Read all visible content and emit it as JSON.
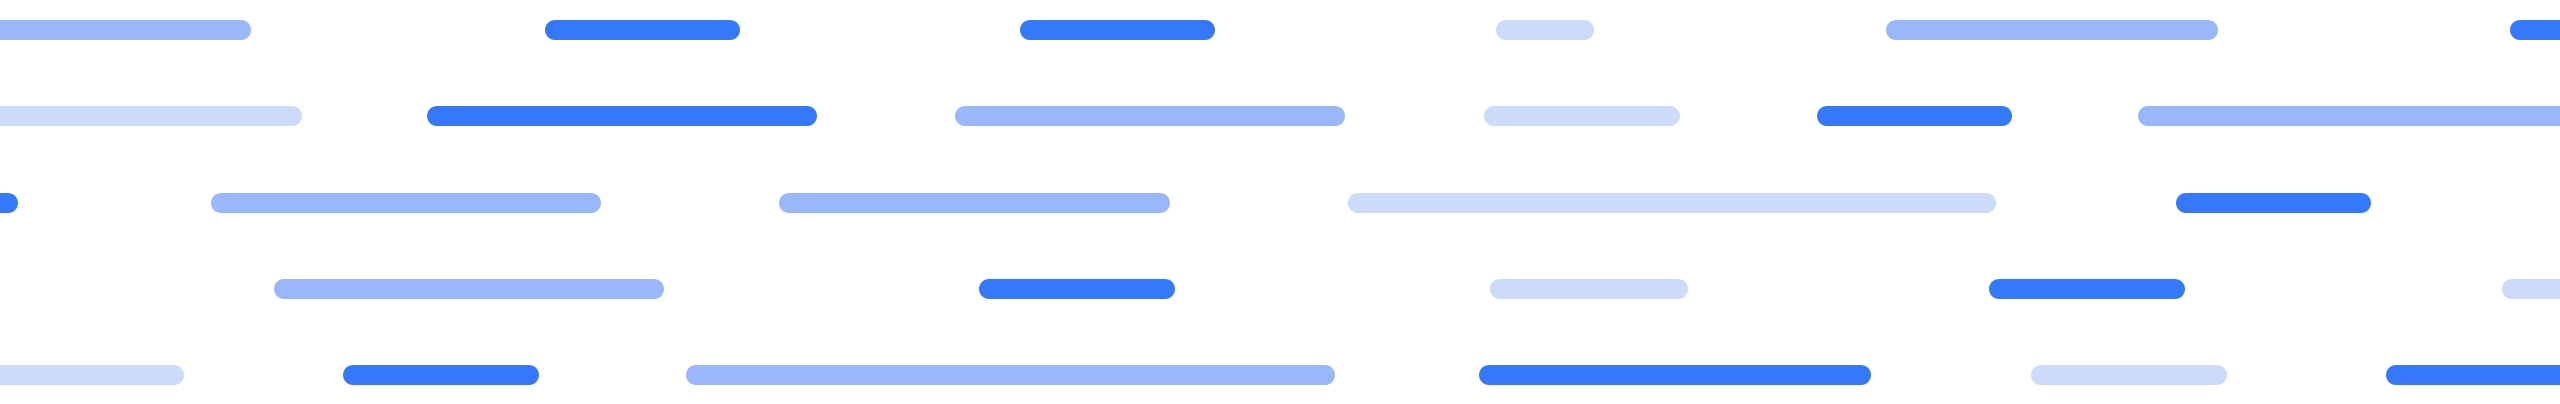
{
  "colors": {
    "dark": "#3579FA",
    "mid": "#99B7FA",
    "light": "#CDDBFB",
    "background": "#FFFFFF"
  },
  "rows": [
    {
      "dashes": [
        {
          "shade": "mid"
        },
        {
          "shade": "dark"
        },
        {
          "shade": "dark"
        },
        {
          "shade": "light"
        },
        {
          "shade": "mid"
        },
        {
          "shade": "dark"
        }
      ]
    },
    {
      "dashes": [
        {
          "shade": "light"
        },
        {
          "shade": "dark"
        },
        {
          "shade": "mid"
        },
        {
          "shade": "light"
        },
        {
          "shade": "dark"
        },
        {
          "shade": "mid"
        }
      ]
    },
    {
      "dashes": [
        {
          "shade": "dark"
        },
        {
          "shade": "mid"
        },
        {
          "shade": "mid"
        },
        {
          "shade": "light"
        },
        {
          "shade": "dark"
        }
      ]
    },
    {
      "dashes": [
        {
          "shade": "mid"
        },
        {
          "shade": "dark"
        },
        {
          "shade": "light"
        },
        {
          "shade": "dark"
        },
        {
          "shade": "light"
        }
      ]
    },
    {
      "dashes": [
        {
          "shade": "light"
        },
        {
          "shade": "dark"
        },
        {
          "shade": "mid"
        },
        {
          "shade": "dark"
        },
        {
          "shade": "light"
        },
        {
          "shade": "dark"
        }
      ]
    }
  ]
}
